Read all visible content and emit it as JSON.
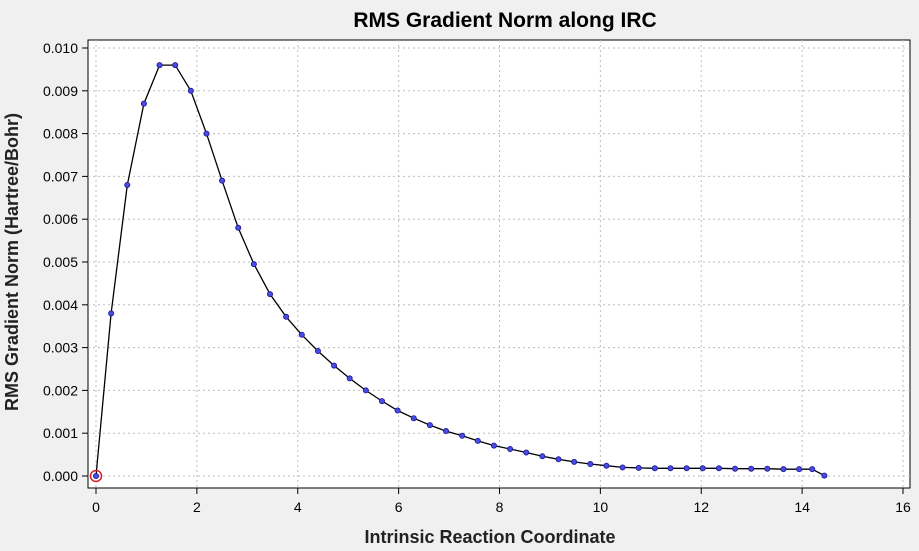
{
  "chart_data": {
    "type": "line",
    "title": "RMS Gradient Norm along IRC",
    "xlabel": "Intrinsic Reaction Coordinate",
    "ylabel": "RMS Gradient Norm (Hartree/Bohr)",
    "xlim": [
      0,
      16
    ],
    "ylim": [
      0,
      0.01
    ],
    "xticks": [
      "0",
      "2",
      "4",
      "6",
      "8",
      "10",
      "12",
      "14",
      "16"
    ],
    "yticks": [
      "0.000",
      "0.001",
      "0.002",
      "0.003",
      "0.004",
      "0.005",
      "0.006",
      "0.007",
      "0.008",
      "0.009",
      "0.010"
    ],
    "grid": true,
    "legend": "none",
    "line_color": "#000000",
    "marker_color": "#4a4ae8",
    "highlight_color": "#d0202a",
    "highlight_index": 0,
    "series": [
      {
        "x": [
          0,
          0.3,
          0.62,
          0.95,
          1.26,
          1.57,
          1.88,
          2.19,
          2.5,
          2.82,
          3.13,
          3.45,
          3.77,
          4.08,
          4.4,
          4.72,
          5.03,
          5.35,
          5.67,
          5.98,
          6.3,
          6.62,
          6.94,
          7.26,
          7.57,
          7.89,
          8.21,
          8.53,
          8.85,
          9.17,
          9.48,
          9.8,
          10.12,
          10.44,
          10.76,
          11.08,
          11.39,
          11.71,
          12.03,
          12.35,
          12.67,
          12.99,
          13.31,
          13.63,
          13.94,
          14.2,
          14.44
        ],
        "y": [
          0.0,
          0.0038,
          0.0068,
          0.0087,
          0.0096,
          0.0096,
          0.009,
          0.008,
          0.0069,
          0.0058,
          0.00495,
          0.00425,
          0.00372,
          0.0033,
          0.00292,
          0.00258,
          0.00228,
          0.002,
          0.00175,
          0.00153,
          0.00135,
          0.00119,
          0.00105,
          0.00094,
          0.00082,
          0.00071,
          0.00063,
          0.00055,
          0.00046,
          0.00039,
          0.00033,
          0.00028,
          0.00024,
          0.0002,
          0.00019,
          0.00018,
          0.00018,
          0.00018,
          0.00018,
          0.00018,
          0.00017,
          0.00017,
          0.00017,
          0.00016,
          0.00016,
          0.00016,
          1e-05
        ]
      }
    ]
  }
}
